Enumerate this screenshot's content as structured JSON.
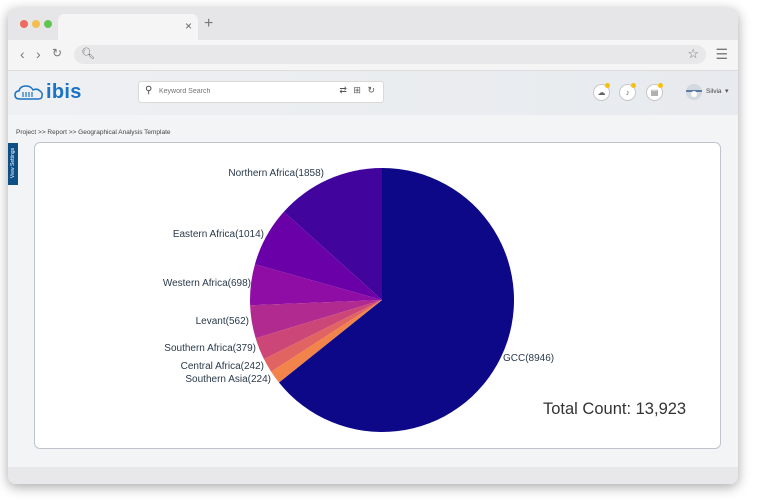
{
  "browser": {
    "tab_close": "×",
    "tab_new": "+",
    "traffic_lights": [
      "#ed6a5e",
      "#f4bf4f",
      "#61c554"
    ]
  },
  "header": {
    "logo_text": "ibis",
    "search_placeholder": "Keyword Search",
    "search_tools": "⇄ ⊞ ↻",
    "user_name": "Silvia",
    "brand_color": "#1a73c4"
  },
  "breadcrumb": "Project >> Report >> Geographical Analysis Template",
  "side_tab_label": "View Settings",
  "total_label": "Total Count: 13,923",
  "chart_data": {
    "type": "pie",
    "slices": [
      {
        "label": "GCC(8946)",
        "value": 8946,
        "color": "#0d0887"
      },
      {
        "label": "Northern Africa(1858)",
        "value": 1858,
        "color": "#41049d"
      },
      {
        "label": "Eastern Africa(1014)",
        "value": 1014,
        "color": "#6a00a8"
      },
      {
        "label": "Western Africa(698)",
        "value": 698,
        "color": "#8f0da4"
      },
      {
        "label": "Levant(562)",
        "value": 562,
        "color": "#b12a90"
      },
      {
        "label": "Southern Africa(379)",
        "value": 379,
        "color": "#cc4778"
      },
      {
        "label": "Central Africa(242)",
        "value": 242,
        "color": "#e16462"
      },
      {
        "label": "Southern Asia(224)",
        "value": 224,
        "color": "#f2844b"
      }
    ]
  }
}
